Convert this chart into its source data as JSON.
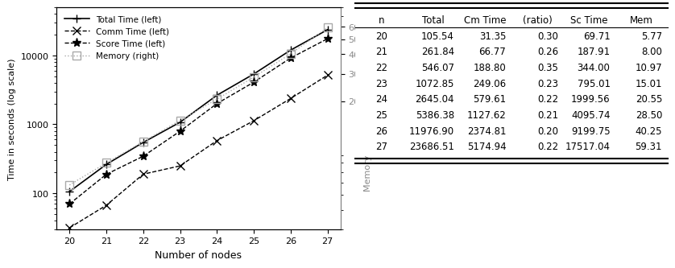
{
  "nodes": [
    20,
    21,
    22,
    23,
    24,
    25,
    26,
    27
  ],
  "total_time": [
    105.54,
    261.84,
    546.07,
    1072.85,
    2645.04,
    5386.38,
    11976.9,
    23686.51
  ],
  "comm_time": [
    31.35,
    66.77,
    188.8,
    249.06,
    579.61,
    1127.62,
    2374.81,
    5174.94
  ],
  "score_time": [
    69.71,
    187.91,
    344.0,
    795.01,
    1999.56,
    4095.74,
    9199.75,
    17517.04
  ],
  "memory": [
    5.77,
    8.0,
    10.97,
    15.01,
    20.55,
    28.5,
    40.25,
    59.31
  ],
  "table_data": [
    [
      "20",
      "105.54",
      "31.35",
      "0.30",
      "69.71",
      "5.77"
    ],
    [
      "21",
      "261.84",
      "66.77",
      "0.26",
      "187.91",
      "8.00"
    ],
    [
      "22",
      "546.07",
      "188.80",
      "0.35",
      "344.00",
      "10.97"
    ],
    [
      "23",
      "1072.85",
      "249.06",
      "0.23",
      "795.01",
      "15.01"
    ],
    [
      "24",
      "2645.04",
      "579.61",
      "0.22",
      "1999.56",
      "20.55"
    ],
    [
      "25",
      "5386.38",
      "1127.62",
      "0.21",
      "4095.74",
      "28.50"
    ],
    [
      "26",
      "11976.90",
      "2374.81",
      "0.20",
      "9199.75",
      "40.25"
    ],
    [
      "27",
      "23686.51",
      "5174.94",
      "0.22",
      "17517.04",
      "59.31"
    ]
  ],
  "col_headers": [
    "n",
    "Total",
    "Cm Time",
    "(ratio)",
    "Sc Time",
    "Mem"
  ],
  "legend_labels": [
    "Total Time (left)",
    "Comm Time (left)",
    "Score Time (left)",
    "Memory (right)"
  ],
  "xlabel": "Number of nodes",
  "ylabel_left": "Time in seconds (log scale)",
  "ylabel_right": "Memory usage in GiB (log scale)",
  "ylim_left": [
    30,
    50000
  ],
  "ylim_right": [
    3,
    80
  ],
  "right_yticks": [
    20,
    30,
    40,
    50,
    60
  ],
  "bg_color": "#ffffff",
  "line_color": "#000000",
  "line_color_light": "#888888"
}
